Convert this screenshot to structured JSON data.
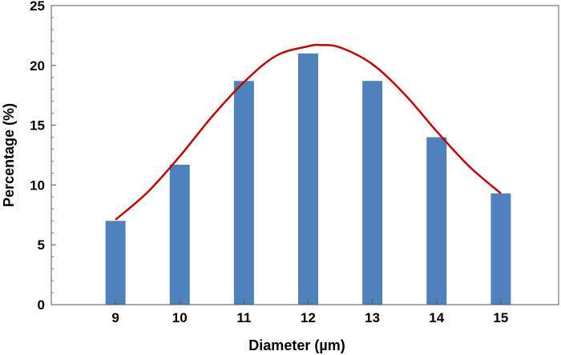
{
  "chart_data": {
    "type": "bar",
    "title": "",
    "xlabel": "Diameter (µm)",
    "ylabel": "Percentage (%)",
    "categories": [
      "9",
      "10",
      "11",
      "12",
      "13",
      "14",
      "15"
    ],
    "x": [
      9,
      10,
      11,
      12,
      13,
      14,
      15
    ],
    "values": [
      7.0,
      11.7,
      18.7,
      21.0,
      18.7,
      14.0,
      9.3
    ],
    "ylim": [
      0,
      25
    ],
    "xlim": [
      8.0,
      15.9
    ],
    "yticks": [
      0,
      5,
      10,
      15,
      20,
      25
    ],
    "grid": false,
    "bar_color": "#4f81bd",
    "fit_curve": {
      "type": "line",
      "color": "#c00000",
      "x": [
        9,
        9.5,
        10,
        10.5,
        11,
        11.5,
        12,
        12.2,
        12.5,
        13,
        13.5,
        14,
        14.5,
        15
      ],
      "y": [
        7.1,
        9.4,
        12.4,
        15.7,
        18.6,
        20.8,
        21.6,
        21.7,
        21.5,
        20.1,
        17.6,
        14.5,
        11.6,
        9.3
      ]
    }
  }
}
